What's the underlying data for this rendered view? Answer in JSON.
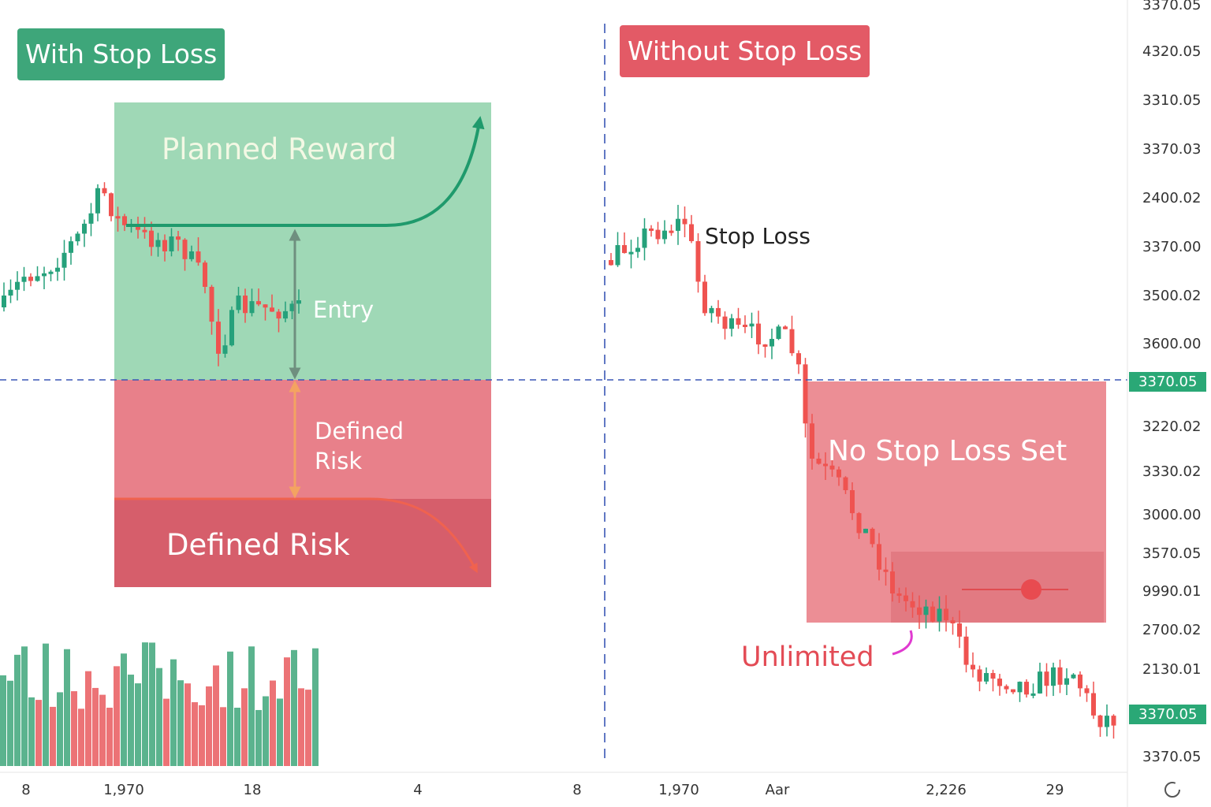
{
  "left_badge": "With Stop Loss",
  "right_badge": "Without Stop Loss",
  "planned_reward": "Planned Reward",
  "entry": "Entry",
  "risk_span": "Defined Risk",
  "risk_zone": "Defined Risk",
  "stop_loss": "Stop Loss",
  "no_stop_zone": "No Stop Loss Set",
  "unlimited": "Unlimited",
  "price_axis": [
    "3370.05",
    "4320.05",
    "3310.05",
    "3370.03",
    "2400.02",
    "3370.00",
    "3500.02",
    "3600.00",
    "3370.05",
    "3220.02",
    "3330.02",
    "3000.00",
    "3570.05",
    "9990.01",
    "2700.02",
    "2130.01",
    "3370.05",
    "3370.05"
  ],
  "time_axis": [
    "8",
    "1,970",
    "18",
    "4",
    "8",
    "1,970",
    "Aar",
    "2,226",
    "29"
  ]
}
